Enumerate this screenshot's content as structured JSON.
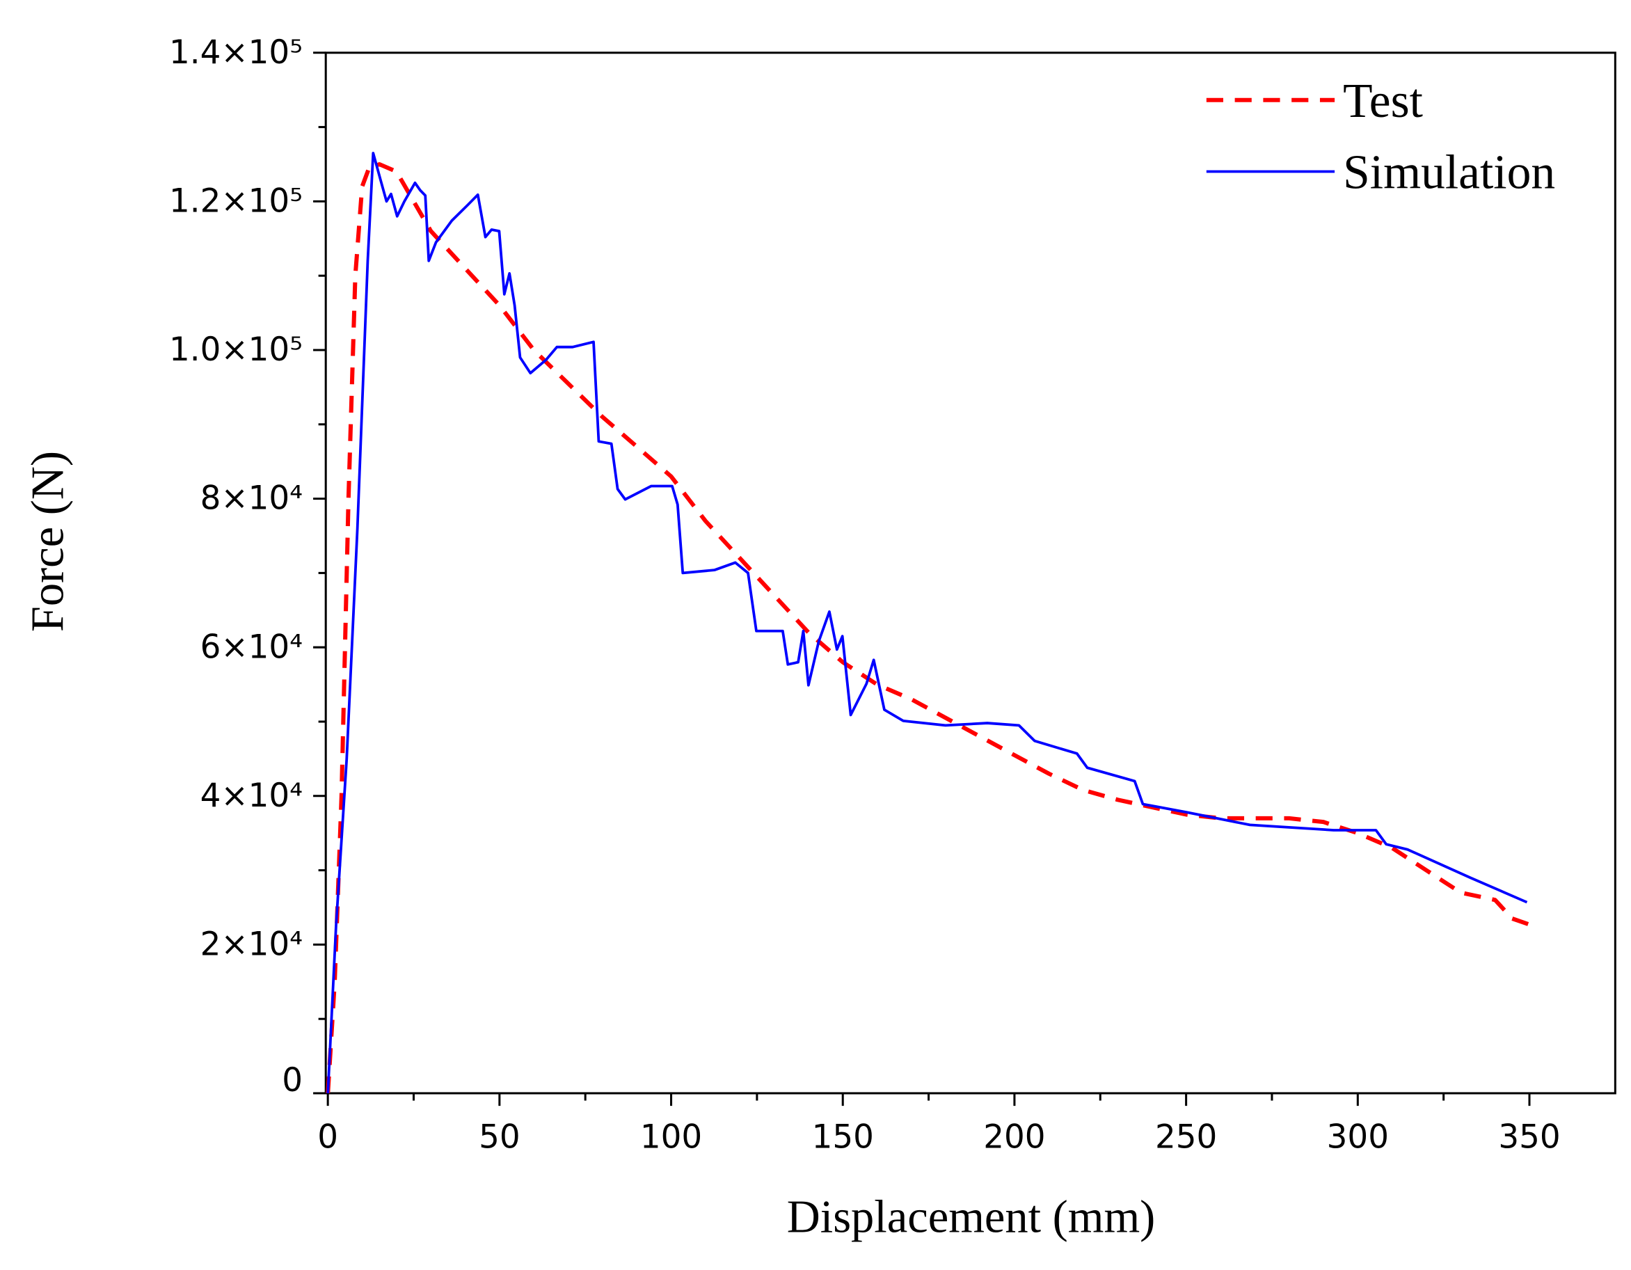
{
  "chart_data": {
    "type": "line",
    "xlabel": "Displacement (mm)",
    "ylabel": "Force (N)",
    "xlim": [
      -0.6,
      375
    ],
    "ylim": [
      0,
      140000
    ],
    "xticks": [
      0,
      50,
      100,
      150,
      200,
      250,
      300,
      350
    ],
    "yticks": [
      0,
      {
        "value": 20000,
        "label": "2×10⁴"
      },
      {
        "value": 40000,
        "label": "4×10⁴"
      },
      {
        "value": 60000,
        "label": "6×10⁴"
      },
      {
        "value": 80000,
        "label": "8×10⁴"
      },
      {
        "value": 100000,
        "label": "1.0×10⁵"
      },
      {
        "value": 120000,
        "label": "1.2×10⁵"
      },
      {
        "value": 140000,
        "label": "1.4×10⁵"
      }
    ],
    "legend": "upper right",
    "series": [
      {
        "name": "Test",
        "color": "#ff0000",
        "linestyle": "dashed",
        "x": [
          0,
          2,
          4,
          6,
          8,
          10,
          12,
          15,
          20,
          25,
          30,
          40,
          50,
          60,
          70,
          80,
          90,
          100,
          110,
          120,
          130,
          140,
          150,
          160,
          170,
          180,
          190,
          200,
          210,
          220,
          230,
          240,
          250,
          260,
          270,
          280,
          290,
          300,
          310,
          320,
          330,
          340,
          345,
          350
        ],
        "values": [
          0,
          15000,
          40000,
          80000,
          110000,
          122000,
          124500,
          125000,
          124000,
          120000,
          116000,
          111000,
          106000,
          100000,
          95500,
          91000,
          87000,
          83000,
          77000,
          72000,
          67000,
          62000,
          58000,
          55000,
          53000,
          50500,
          48000,
          45500,
          43000,
          40800,
          39500,
          38500,
          37500,
          37000,
          37000,
          37000,
          36500,
          35000,
          33000,
          30000,
          27000,
          26000,
          23500,
          22700
        ]
      },
      {
        "name": "Simulation",
        "color": "#0000ff",
        "linestyle": "solid",
        "x": [
          0,
          2.4,
          5.5,
          8.6,
          11.6,
          13.2,
          15.3,
          17.1,
          18.4,
          20.2,
          22.3,
          25.4,
          26.9,
          28.4,
          29.4,
          31.5,
          36.1,
          40.7,
          43.7,
          45.9,
          47.7,
          49.9,
          51.4,
          52.9,
          54.4,
          56.0,
          59.0,
          63.6,
          66.7,
          71.3,
          77.4,
          78.9,
          82.6,
          84.4,
          86.6,
          94.2,
          100.3,
          101.9,
          103.4,
          112.6,
          118.7,
          122.4,
          124.8,
          132.5,
          134,
          137,
          138.5,
          140,
          143,
          146.1,
          148.3,
          149.9,
          152.3,
          156.9,
          159,
          162.1,
          167.6,
          179.9,
          192.1,
          201.3,
          205.9,
          218.2,
          221.2,
          235,
          237.4,
          250.2,
          268.6,
          293,
          305.3,
          308.3,
          314.5,
          332.8,
          349.3
        ],
        "values": [
          0,
          22600,
          45000,
          76000,
          112000,
          126500,
          123000,
          120000,
          121000,
          118000,
          120000,
          122500,
          121500,
          120800,
          112000,
          114500,
          117400,
          119500,
          120900,
          115200,
          116200,
          116000,
          107500,
          110300,
          106000,
          99000,
          96900,
          98700,
          100400,
          100400,
          101100,
          87700,
          87400,
          81300,
          79900,
          81700,
          81700,
          79200,
          70000,
          70400,
          71400,
          70000,
          62200,
          62200,
          57700,
          58000,
          62200,
          54900,
          60800,
          64800,
          59700,
          61500,
          50900,
          55100,
          58300,
          51600,
          50100,
          49500,
          49800,
          49500,
          47400,
          45700,
          43800,
          42000,
          38900,
          37800,
          36100,
          35400,
          35400,
          33500,
          32800,
          29000,
          25700
        ]
      }
    ]
  }
}
